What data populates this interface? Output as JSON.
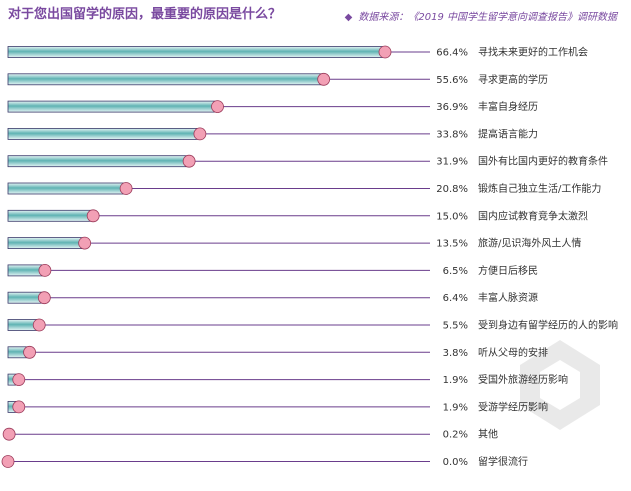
{
  "header": {
    "title": "对于您出国留学的原因，最重要的原因是什么？",
    "source_bullet": "◆",
    "source": "数据来源：《2019 中国学生留学意向调查报告》调研数据"
  },
  "colors": {
    "bar_fill_dark": "#5fb3b3",
    "bar_fill_light": "#e6f5f5",
    "bar_border": "#3a3a6a",
    "marker": "#f2a0b5",
    "marker_stroke": "#9b3a5a",
    "leader_line": "#6a3d8c",
    "title": "#7a4aa0"
  },
  "chart_data": {
    "type": "bar",
    "orientation": "horizontal",
    "title": "对于您出国留学的原因，最重要的原因是什么？",
    "categories": [
      "寻找未来更好的工作机会",
      "寻求更高的学历",
      "丰富自身经历",
      "提高语言能力",
      "国外有比国内更好的教育条件",
      "锻炼自己独立生活/工作能力",
      "国内应试教育竞争太激烈",
      "旅游/见识海外风土人情",
      "方便日后移民",
      "丰富人脉资源",
      "受到身边有留学经历的人的影响",
      "听从父母的安排",
      "受国外旅游经历影响",
      "受游学经历影响",
      "其他",
      "留学很流行"
    ],
    "values": [
      66.4,
      55.6,
      36.9,
      33.8,
      31.9,
      20.8,
      15.0,
      13.5,
      6.5,
      6.4,
      5.5,
      3.8,
      1.9,
      1.9,
      0.2,
      0.0
    ],
    "labels": [
      "66.4%",
      "55.6%",
      "36.9%",
      "33.8%",
      "31.9%",
      "20.8%",
      "15.0%",
      "13.5%",
      "6.5%",
      "6.4%",
      "5.5%",
      "3.8%",
      "1.9%",
      "1.9%",
      "0.2%",
      "0.0%"
    ],
    "xlim": [
      0,
      66.4
    ],
    "grid": false
  }
}
